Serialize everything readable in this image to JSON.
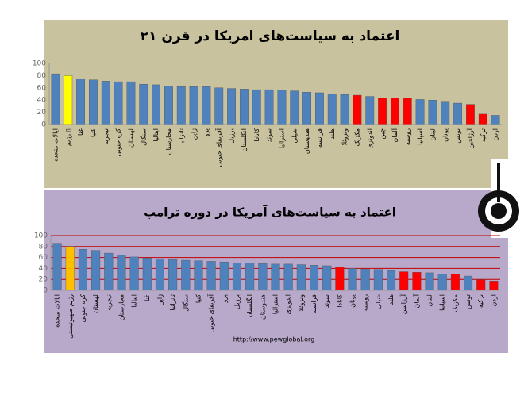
{
  "chart_data": [
    {
      "type": "bar",
      "title": "اعتماد به سیاست‌های امریکا در قرن ۲۱",
      "categories": [
        "ایالات متحده",
        "رژیم ▯",
        "غنا",
        "کنیا",
        "نیجریه",
        "کره جنوبی",
        "لهستان",
        "سنگال",
        "ایتالیا",
        "مجارستان",
        "تانزانیا",
        "ژاپن",
        "پرو",
        "آفریقای جنوبی",
        "برزیل",
        "انگلستان",
        "کانادا",
        "سوئد",
        "استرالیا",
        "شیلی",
        "هندوستان",
        "فرانسه",
        "هلند",
        "ونزوئلا",
        "مکزیک",
        "اندونزی",
        "چین",
        "آلمان",
        "روسیه",
        "اسپانیا",
        "لبنان",
        "یونان",
        "تونس",
        "آرژانتین",
        "ترکیه",
        "اردن"
      ],
      "values": [
        83,
        80,
        75,
        73,
        71,
        70,
        70,
        66,
        65,
        63,
        62,
        62,
        62,
        60,
        59,
        58,
        57,
        57,
        56,
        55,
        53,
        52,
        50,
        49,
        48,
        46,
        43,
        43,
        43,
        41,
        40,
        38,
        35,
        33,
        17,
        15
      ],
      "colors": [
        "#4f81bd",
        "#ffff00",
        "#4f81bd",
        "#4f81bd",
        "#4f81bd",
        "#4f81bd",
        "#4f81bd",
        "#4f81bd",
        "#4f81bd",
        "#4f81bd",
        "#4f81bd",
        "#4f81bd",
        "#4f81bd",
        "#4f81bd",
        "#4f81bd",
        "#4f81bd",
        "#4f81bd",
        "#4f81bd",
        "#4f81bd",
        "#4f81bd",
        "#4f81bd",
        "#4f81bd",
        "#4f81bd",
        "#4f81bd",
        "#ff0000",
        "#4f81bd",
        "#ff0000",
        "#ff0000",
        "#ff0000",
        "#4f81bd",
        "#4f81bd",
        "#4f81bd",
        "#4f81bd",
        "#ff0000",
        "#ff0000",
        "#4f81bd"
      ],
      "ylim": [
        0,
        100
      ],
      "yticks": [
        0,
        20,
        40,
        60,
        80,
        100
      ],
      "grid": false,
      "background": "#c8c29f"
    },
    {
      "type": "bar",
      "title": "اعتماد به سیاست‌های آمریکا در دوره ترامپ",
      "categories": [
        "ایالات متحده",
        "رژیم صهیونیستی",
        "کره جنوبی",
        "لهستان",
        "نیجریه",
        "مجارستان",
        "ایتالیا",
        "غنا",
        "ژاپن",
        "تانزانیا",
        "سنگال",
        "کنیا",
        "آفریقای جنوبی",
        "پرو",
        "برزیل",
        "انگلستان",
        "هندوستان",
        "استرالیا",
        "اندونزی",
        "ونزوئلا",
        "فرانسه",
        "سوئد",
        "کانادا",
        "یونان",
        "روسیه",
        "شیلی",
        "هلند",
        "آرژانتین",
        "آلمان",
        "لبنان",
        "اسپانیا",
        "مکزیک",
        "تونس",
        "ترکیه",
        "اردن"
      ],
      "values": [
        86,
        80,
        75,
        73,
        68,
        64,
        61,
        59,
        57,
        56,
        55,
        54,
        53,
        52,
        50,
        50,
        49,
        48,
        48,
        47,
        46,
        45,
        42,
        40,
        39,
        38,
        36,
        34,
        33,
        32,
        30,
        30,
        26,
        19,
        17
      ],
      "colors": [
        "#4f81bd",
        "#ffc000",
        "#4f81bd",
        "#4f81bd",
        "#4f81bd",
        "#4f81bd",
        "#4f81bd",
        "#4f81bd",
        "#4f81bd",
        "#4f81bd",
        "#4f81bd",
        "#4f81bd",
        "#4f81bd",
        "#4f81bd",
        "#4f81bd",
        "#4f81bd",
        "#4f81bd",
        "#4f81bd",
        "#4f81bd",
        "#4f81bd",
        "#4f81bd",
        "#4f81bd",
        "#ff0000",
        "#4f81bd",
        "#4f81bd",
        "#4f81bd",
        "#4f81bd",
        "#ff0000",
        "#ff0000",
        "#4f81bd",
        "#4f81bd",
        "#ff0000",
        "#4f81bd",
        "#ff0000",
        "#ff0000"
      ],
      "ylim": [
        0,
        100
      ],
      "yticks": [
        0,
        20,
        40,
        60,
        80,
        100
      ],
      "grid": true,
      "grid_color": "#c00000",
      "background": "#b8a9cb",
      "source": "http://www.pewglobal.org"
    }
  ]
}
